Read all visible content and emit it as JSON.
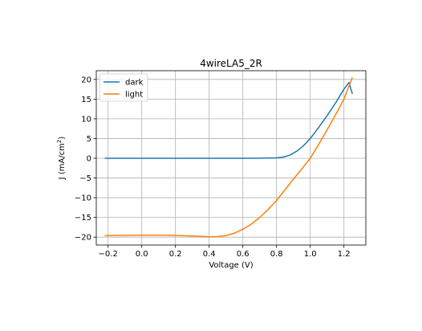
{
  "chart_data": {
    "type": "line",
    "title": "4wireLA5_2R",
    "xlabel": "Voltage (V)",
    "ylabel_main": "J (mA/cm",
    "ylabel_sup": "2",
    "ylabel_tail": ")",
    "xlim": [
      -0.27,
      1.33
    ],
    "ylim": [
      -22,
      22.2
    ],
    "xticks": [
      -0.2,
      0.0,
      0.2,
      0.4,
      0.6,
      0.8,
      1.0,
      1.2
    ],
    "xtick_labels": [
      "−0.2",
      "0.0",
      "0.2",
      "0.4",
      "0.6",
      "0.8",
      "1.0",
      "1.2"
    ],
    "yticks": [
      -20,
      -15,
      -10,
      -5,
      0,
      5,
      10,
      15,
      20
    ],
    "ytick_labels": [
      "−20",
      "−15",
      "−10",
      "−5",
      "0",
      "5",
      "10",
      "15",
      "20"
    ],
    "grid": true,
    "legend_position": "top-left",
    "series": [
      {
        "name": "dark",
        "color": "#1f77b4",
        "x": [
          -0.22,
          0.0,
          0.2,
          0.4,
          0.6,
          0.7,
          0.8,
          0.84,
          0.88,
          0.92,
          0.96,
          1.0,
          1.05,
          1.1,
          1.15,
          1.2,
          1.23,
          1.25
        ],
        "y": [
          0,
          0,
          0,
          0,
          0,
          0.02,
          0.1,
          0.3,
          0.8,
          1.8,
          3.2,
          5.0,
          7.8,
          10.8,
          14.0,
          17.5,
          19.2,
          16.3
        ]
      },
      {
        "name": "light",
        "color": "#ff7f0e",
        "x": [
          -0.22,
          -0.1,
          0.0,
          0.1,
          0.2,
          0.3,
          0.4,
          0.45,
          0.5,
          0.55,
          0.6,
          0.65,
          0.7,
          0.75,
          0.8,
          0.85,
          0.9,
          0.95,
          1.0,
          1.05,
          1.1,
          1.15,
          1.2,
          1.25
        ],
        "y": [
          -19.6,
          -19.55,
          -19.5,
          -19.5,
          -19.55,
          -19.7,
          -19.9,
          -19.85,
          -19.6,
          -19.0,
          -18.0,
          -16.7,
          -15.0,
          -13.0,
          -10.7,
          -8.0,
          -5.3,
          -2.7,
          0.0,
          3.5,
          7.2,
          11.0,
          15.0,
          20.5
        ]
      }
    ]
  }
}
